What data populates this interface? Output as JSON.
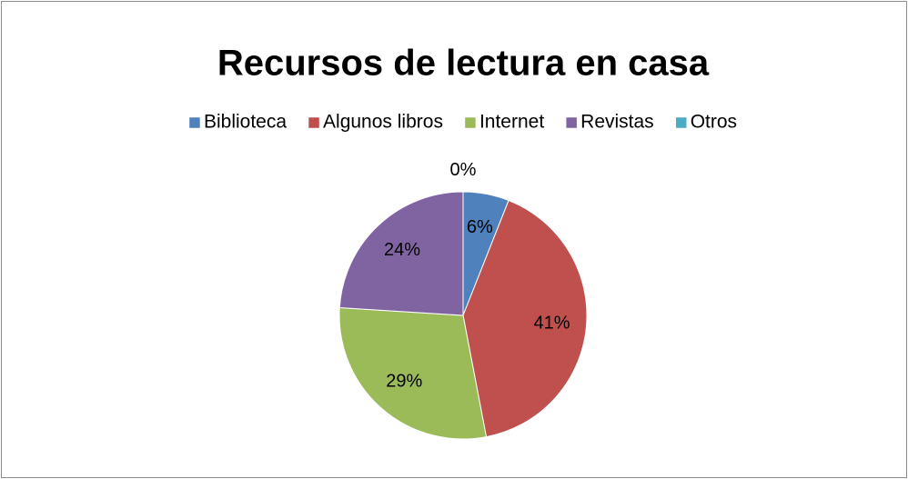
{
  "chart_data": {
    "type": "pie",
    "title": "Recursos de lectura en casa",
    "categories": [
      "Biblioteca",
      "Algunos libros",
      "Internet",
      "Revistas",
      "Otros"
    ],
    "values": [
      6,
      41,
      29,
      24,
      0
    ],
    "value_labels": [
      "6%",
      "41%",
      "29%",
      "24%",
      "0%"
    ],
    "colors": [
      "#4f81bd",
      "#c0504d",
      "#9bbb59",
      "#8064a2",
      "#4bacc6"
    ],
    "legend": "top"
  }
}
